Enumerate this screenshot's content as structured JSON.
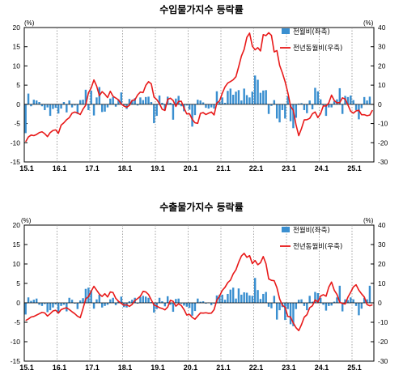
{
  "colors": {
    "bar": "#3a8fd0",
    "line": "#e81919",
    "axis": "#000000",
    "grid": "#8a8a8a"
  },
  "chart_data": [
    {
      "type": "bar",
      "title": "수입물가지수 등락률",
      "left_unit": "(%)",
      "right_unit": "(%)",
      "ylim_left": [
        -15,
        20
      ],
      "ylim_right": [
        -30,
        40
      ],
      "yticks_left": [
        "20",
        "15",
        "10",
        "5",
        "0",
        "-5",
        "-10",
        "-15"
      ],
      "yticks_right": [
        "40",
        "30",
        "20",
        "10",
        "0",
        "-10",
        "-20",
        "-30"
      ],
      "xticks": [
        "15.1",
        "16.1",
        "17.1",
        "18.1",
        "19.1",
        "20.1",
        "21.1",
        "22.1",
        "23.1",
        "24.1",
        "25.1"
      ],
      "grid": "vertical dotted at each January",
      "legend_position": "top-right",
      "series": [
        {
          "name": "전월비(좌축)",
          "type": "bar",
          "axis": "left",
          "values": [
            -7.5,
            2.8,
            -0.5,
            1.2,
            1.0,
            0.6,
            -0.5,
            -1.5,
            -0.8,
            -3.0,
            -1.2,
            -0.9,
            -2.4,
            -1.1,
            0.6,
            -2.1,
            1.0,
            -0.8,
            -0.3,
            -2.5,
            1.1,
            1.2,
            3.8,
            -1.5,
            3.6,
            -2.9,
            1.8,
            4.5,
            -2.0,
            -1.9,
            -0.8,
            1.5,
            1.9,
            -0.6,
            1.3,
            3.1,
            -0.3,
            -1.2,
            1.4,
            1.0,
            1.6,
            -0.3,
            1.8,
            1.1,
            1.9,
            2.0,
            0.6,
            -4.9,
            -3.0,
            2.3,
            0.4,
            -1.5,
            2.0,
            0.4,
            -4.0,
            1.5,
            2.2,
            -0.5,
            -1.8,
            -0.3,
            -1.4,
            -5.8,
            -2.8,
            1.2,
            1.0,
            0.5,
            -0.9,
            -1.1,
            -0.8,
            -1.1,
            3.4,
            0.6,
            1.8,
            0.4,
            3.5,
            4.1,
            2.5,
            3.3,
            3.7,
            1.0,
            4.1,
            2.4,
            1.8,
            3.3,
            7.5,
            6.4,
            3.0,
            3.6,
            3.7,
            -2.5,
            -0.4,
            1.1,
            -3.7,
            -4.7,
            -1.5,
            -3.7,
            2.1,
            -4.4,
            -6.2,
            -3.5,
            0.2,
            0.3,
            -1.5,
            -2.3,
            1.0,
            -1.3,
            4.3,
            3.4,
            1.3,
            -0.3,
            -3.0,
            -0.8,
            -0.8,
            0.8,
            1.3,
            4.2,
            -2.5,
            2.2,
            1.9,
            2.3,
            1.1,
            -1.5,
            -3.9,
            -1.0,
            1.9,
            1.0,
            2.0
          ]
        },
        {
          "name": "전년동월비(우축)",
          "type": "line",
          "axis": "right",
          "values": [
            -19.5,
            -17.0,
            -16.0,
            -16.3,
            -15.7,
            -14.7,
            -14.3,
            -15.3,
            -16.8,
            -14.7,
            -13.6,
            -13.3,
            -15.1,
            -10.8,
            -9.6,
            -8.0,
            -6.9,
            -4.6,
            -4.0,
            -4.5,
            -5.3,
            -2.5,
            -0.4,
            6.0,
            8.6,
            12.7,
            9.5,
            4.5,
            6.6,
            5.3,
            3.5,
            6.8,
            4.2,
            3.3,
            2.3,
            0.2,
            -0.9,
            -1.5,
            -0.5,
            2.1,
            2.3,
            4.9,
            6.4,
            6.1,
            9.9,
            11.8,
            10.7,
            3.8,
            2.5,
            0.4,
            -2.6,
            -3.2,
            2.6,
            3.2,
            2.0,
            -1.1,
            1.5,
            1.6,
            -2.0,
            -5.0,
            -4.9,
            -7.8,
            -9.6,
            -9.9,
            -4.7,
            -4.3,
            -5.3,
            -4.6,
            -4.0,
            -5.5,
            0.7,
            1.8,
            5.8,
            9.1,
            11.1,
            11.9,
            12.8,
            14.4,
            19.6,
            25.1,
            28.6,
            34.9,
            37.1,
            30.3,
            28.4,
            29.5,
            27.8,
            36.3,
            35.8,
            37.3,
            35.9,
            27.3,
            28.0,
            20.3,
            16.4,
            11.8,
            6.1,
            -1.0,
            -3.1,
            -10.7,
            -16.3,
            -12.6,
            -8.1,
            -8.0,
            -7.3,
            -4.9,
            -4.0,
            -6.9,
            -4.8,
            -0.8,
            -0.9,
            0.8,
            4.8,
            2.0,
            0.8,
            0.9,
            3.4,
            2.7,
            -0.3,
            -3.6,
            -4.6,
            -3.4,
            -3.1,
            -5.4,
            -5.4,
            -5.9,
            -5.6,
            -3.0
          ]
        }
      ]
    },
    {
      "type": "bar",
      "title": "수출물가지수 등락률",
      "left_unit": "(%)",
      "right_unit": "(%)",
      "ylim_left": [
        -15,
        20
      ],
      "ylim_right": [
        -30,
        40
      ],
      "yticks_left": [
        "20",
        "15",
        "10",
        "5",
        "0",
        "-5",
        "-10",
        "-15"
      ],
      "yticks_right": [
        "40",
        "30",
        "20",
        "10",
        "0",
        "-10",
        "-20",
        "-30"
      ],
      "xticks": [
        "15.1",
        "16.1",
        "17.1",
        "18.1",
        "19.1",
        "20.1",
        "21.1",
        "22.1",
        "23.1",
        "24.1",
        "25.1"
      ],
      "grid": "vertical dotted at each January",
      "legend_position": "top-right",
      "series": [
        {
          "name": "전월비(좌축)",
          "type": "bar",
          "axis": "left",
          "values": [
            -3.0,
            1.4,
            0.5,
            0.8,
            1.1,
            -0.5,
            -0.8,
            -0.3,
            -2.4,
            -1.9,
            -1.2,
            -0.4,
            -2.5,
            -0.8,
            -0.5,
            -2.2,
            1.3,
            0.8,
            -0.2,
            -1.6,
            0.6,
            1.2,
            3.6,
            3.9,
            3.2,
            -1.5,
            0.9,
            2.1,
            -1.2,
            -0.8,
            -0.5,
            0.9,
            1.3,
            -0.6,
            0.4,
            1.6,
            -1.1,
            -1.2,
            0.4,
            0.8,
            1.3,
            -0.2,
            1.5,
            1.8,
            1.6,
            1.3,
            0.2,
            -2.5,
            -1.6,
            1.3,
            0.4,
            -0.9,
            1.7,
            -0.5,
            -2.3,
            1.0,
            1.1,
            -0.2,
            -0.7,
            -1.0,
            -1.3,
            -3.3,
            -2.1,
            1.1,
            0.3,
            0.4,
            -0.2,
            0.1,
            -0.6,
            -0.2,
            1.9,
            2.1,
            2.1,
            0.8,
            2.3,
            3.4,
            3.9,
            1.1,
            3.7,
            2.1,
            2.7,
            2.6,
            1.9,
            1.8,
            6.4,
            3.3,
            1.0,
            2.3,
            2.8,
            -1.0,
            -1.4,
            1.8,
            -4.3,
            -1.9,
            -1.1,
            -4.4,
            -1.6,
            -5.5,
            -6.0,
            -1.6,
            0.8,
            0.9,
            -0.8,
            -1.9,
            1.8,
            0.3,
            2.8,
            2.5,
            1.3,
            -0.5,
            -2.0,
            -0.8,
            -0.7,
            0.3,
            1.4,
            4.4,
            -2.2,
            0.9,
            0.7,
            1.4,
            0.9,
            -0.8,
            -3.2,
            -1.5,
            1.3,
            0.9,
            4.4
          ]
        },
        {
          "name": "전년동월비(우축)",
          "type": "line",
          "axis": "right",
          "values": [
            -9.1,
            -8.3,
            -7.3,
            -7.0,
            -6.3,
            -5.6,
            -4.9,
            -5.2,
            -6.8,
            -5.6,
            -4.2,
            -3.8,
            -5.3,
            -3.5,
            -2.9,
            -2.5,
            -3.5,
            -4.6,
            -5.6,
            -6.9,
            -7.6,
            -3.0,
            2.0,
            3.2,
            6.0,
            8.5,
            6.5,
            4.5,
            3.3,
            4.7,
            3.0,
            5.6,
            5.3,
            2.3,
            0.8,
            -0.3,
            -1.2,
            -1.0,
            -1.8,
            -0.8,
            1.2,
            2.2,
            3.4,
            5.9,
            5.6,
            4.3,
            1.5,
            -1.1,
            -1.7,
            -2.5,
            -2.9,
            -3.6,
            -2.2,
            1.3,
            0.8,
            -1.7,
            -0.5,
            -1.4,
            -3.5,
            -6.3,
            -5.9,
            -7.5,
            -8.4,
            -6.8,
            -5.2,
            -5.3,
            -5.1,
            -5.4,
            -5.3,
            -3.5,
            1.4,
            3.5,
            6.4,
            8.0,
            10.4,
            11.7,
            14.9,
            17.0,
            20.9,
            24.1,
            25.5,
            23.4,
            24.3,
            20.2,
            21.8,
            19.6,
            20.7,
            23.8,
            20.1,
            12.3,
            11.6,
            11.4,
            7.8,
            2.0,
            -1.2,
            -2.3,
            -7.0,
            -7.3,
            -10.4,
            -12.8,
            -14.3,
            -11.2,
            -7.4,
            -6.1,
            -2.5,
            -1.5,
            1.5,
            0.4,
            3.5,
            4.2,
            3.4,
            8.1,
            10.7,
            6.5,
            4.3,
            0.3,
            -0.3,
            -0.6,
            2.9,
            5.4,
            8.2,
            9.3,
            6.5,
            4.6,
            3.0,
            -0.9,
            -1.5,
            -1.0
          ]
        }
      ]
    }
  ]
}
